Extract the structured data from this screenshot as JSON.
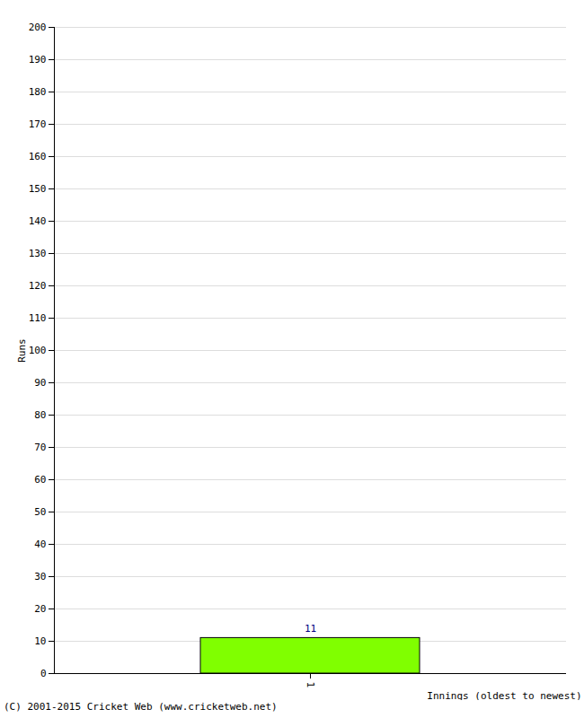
{
  "chart_data": {
    "type": "bar",
    "categories": [
      "1"
    ],
    "values": [
      11
    ],
    "color": "#80ff00",
    "ylim": [
      0,
      200
    ],
    "yticks": [
      0,
      10,
      20,
      30,
      40,
      50,
      60,
      70,
      80,
      90,
      100,
      110,
      120,
      130,
      140,
      150,
      160,
      170,
      180,
      190,
      200
    ],
    "y_label": "Runs",
    "x_label": "Innings (oldest to newest)",
    "caption": "(C) 2001-2015 Cricket Web (www.cricketweb.net)",
    "grid": true,
    "data_labels": true
  }
}
